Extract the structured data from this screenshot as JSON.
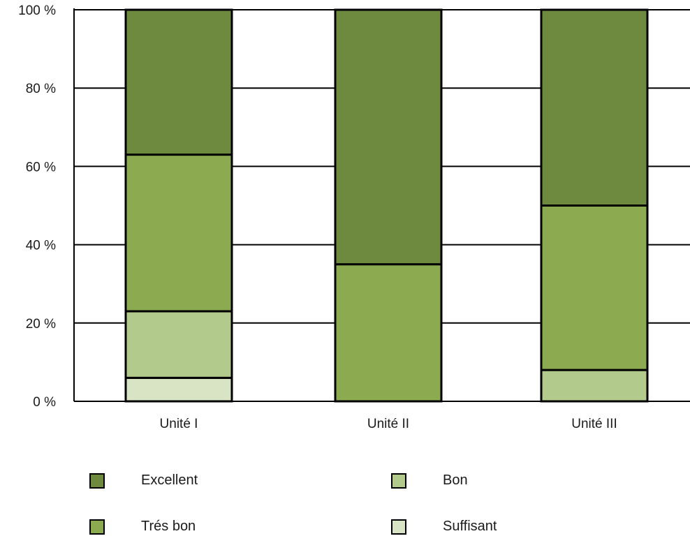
{
  "chart_data": {
    "type": "bar",
    "stacked": true,
    "percent": true,
    "categories": [
      "Unité I",
      "Unité II",
      "Unité III"
    ],
    "series": [
      {
        "name": "Suffisant",
        "color": "#d9e4c4",
        "values": [
          6,
          0,
          0
        ]
      },
      {
        "name": "Bon",
        "color": "#b3ca8d",
        "values": [
          17,
          0,
          8
        ]
      },
      {
        "name": "Trés bon",
        "color": "#8cab51",
        "values": [
          40,
          35,
          42
        ]
      },
      {
        "name": "Excellent",
        "color": "#6d8a3e",
        "values": [
          37,
          65,
          50
        ]
      }
    ],
    "ylim": [
      0,
      100
    ],
    "yticks": [
      0,
      20,
      40,
      60,
      80,
      100
    ],
    "ytick_labels": [
      "0 %",
      "20 %",
      "40 %",
      "60 %",
      "80 %",
      "100 %"
    ],
    "grid": true,
    "legend_order": [
      "Excellent",
      "Bon",
      "Trés bon",
      "Suffisant"
    ],
    "legend_position": "bottom"
  }
}
